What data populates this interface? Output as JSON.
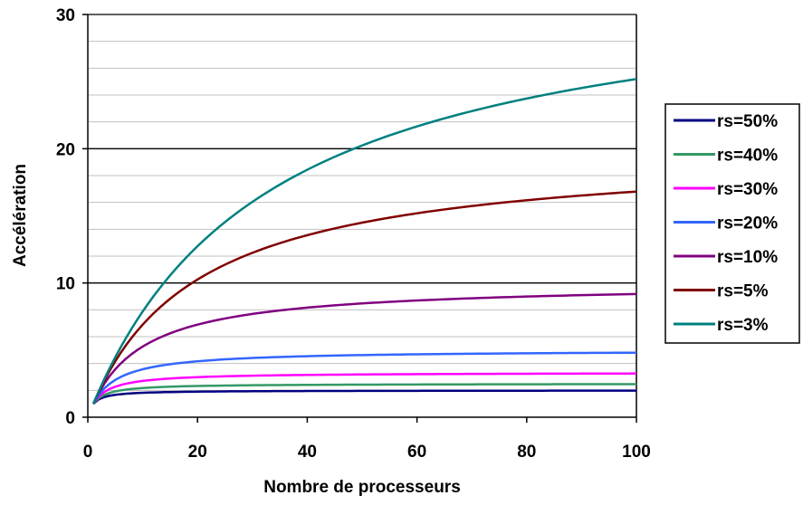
{
  "chart_data": {
    "type": "line",
    "title": "",
    "xlabel": "Nombre de processeurs",
    "ylabel": "Accélération",
    "xlim": [
      0,
      100
    ],
    "ylim": [
      0,
      30
    ],
    "x_ticks": [
      "0",
      "20",
      "40",
      "60",
      "80",
      "100"
    ],
    "y_ticks": [
      "0",
      "10",
      "20",
      "30"
    ],
    "major_grid_y": [
      10,
      20,
      30
    ],
    "minor_grid_y": [
      2,
      4,
      6,
      8,
      12,
      14,
      16,
      18,
      22,
      24,
      26,
      28
    ],
    "legend_position": "right",
    "x": [
      1,
      100
    ],
    "series": [
      {
        "name": "rs=50%",
        "serial_fraction": 0.5,
        "color": "#000080",
        "x_range": [
          1,
          100
        ]
      },
      {
        "name": "rs=40%",
        "serial_fraction": 0.4,
        "color": "#339966",
        "x_range": [
          1,
          100
        ]
      },
      {
        "name": "rs=30%",
        "serial_fraction": 0.3,
        "color": "#FF00FF",
        "x_range": [
          1,
          100
        ]
      },
      {
        "name": "rs=20%",
        "serial_fraction": 0.2,
        "color": "#3366FF",
        "x_range": [
          1,
          100
        ]
      },
      {
        "name": "rs=10%",
        "serial_fraction": 0.1,
        "color": "#800080",
        "x_range": [
          1,
          100
        ]
      },
      {
        "name": "rs=5%",
        "serial_fraction": 0.05,
        "color": "#800000",
        "x_range": [
          1,
          100
        ]
      },
      {
        "name": "rs=3%",
        "serial_fraction": 0.03,
        "color": "#008080",
        "x_range": [
          1,
          100
        ]
      }
    ]
  }
}
